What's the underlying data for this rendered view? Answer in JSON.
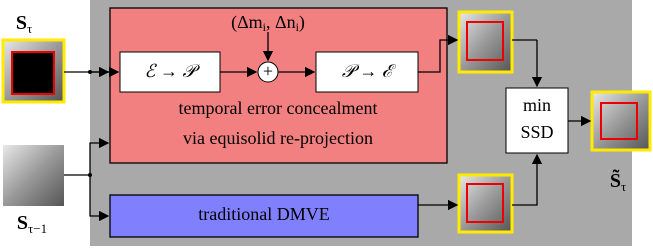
{
  "inputs": {
    "current": {
      "main": "S",
      "sub": "τ"
    },
    "previous": {
      "main": "S",
      "sub": "τ−1"
    }
  },
  "output": {
    "main": "S̃",
    "sub": "τ"
  },
  "offset_label": "(Δm",
  "offset_sub_m": "i",
  "offset_mid": ", Δn",
  "offset_sub_n": "i",
  "offset_end": ")",
  "nodes": [
    {
      "label": "ℰ → 𝒫"
    },
    {
      "label": "+"
    },
    {
      "label": "𝒫 → ℰ"
    },
    {
      "label": "temporal error concealment"
    },
    {
      "label": "via equisolid re-projection"
    },
    {
      "label": "traditional DMVE"
    },
    {
      "label": "min"
    },
    {
      "label": "SSD"
    }
  ]
}
